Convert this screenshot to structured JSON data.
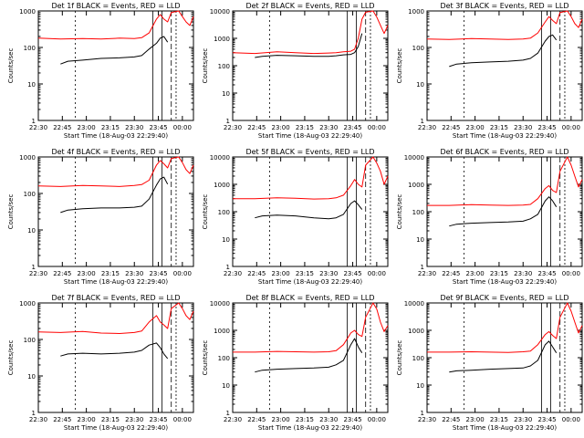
{
  "chart_data": [
    {
      "type": "line",
      "title": "Det 1f BLACK = Events, RED = LLD",
      "xlabel": "Start Time (18-Aug-03 22:29:40)",
      "ylabel": "Counts/sec",
      "x_ticks": [
        "22:30",
        "22:45",
        "23:00",
        "23:15",
        "23:30",
        "23:45",
        "00:00"
      ],
      "y_ticks": [
        "1",
        "10",
        "100",
        "1000"
      ],
      "ylim": [
        1,
        1000
      ],
      "y_scale": "log",
      "xlim_min": [
        0,
        42
      ],
      "series": [
        {
          "name": "Events",
          "color": "#000000",
          "x": [
            6,
            8,
            12,
            17,
            22,
            26,
            28,
            30,
            32,
            33,
            34,
            35
          ],
          "y": [
            35,
            42,
            45,
            50,
            52,
            55,
            60,
            90,
            130,
            180,
            200,
            140
          ]
        },
        {
          "name": "LLD",
          "color": "#ff0000",
          "x": [
            0,
            6,
            12,
            17,
            22,
            26,
            28,
            30,
            32,
            33,
            34,
            35,
            36,
            38,
            39,
            40,
            41,
            42
          ],
          "y": [
            180,
            170,
            175,
            170,
            180,
            175,
            185,
            250,
            600,
            800,
            600,
            500,
            900,
            1000,
            700,
            500,
            400,
            700
          ]
        }
      ]
    },
    {
      "type": "line",
      "title": "Det 2f BLACK = Events, RED = LLD",
      "xlabel": "Start Time (18-Aug-03 22:29:40)",
      "ylabel": "Counts/sec",
      "x_ticks": [
        "22:30",
        "22:45",
        "23:00",
        "23:15",
        "23:30",
        "23:45",
        "00:00"
      ],
      "y_ticks": [
        "1",
        "10",
        "100",
        "1000",
        "10000"
      ],
      "ylim": [
        1,
        10000
      ],
      "y_scale": "log",
      "xlim_min": [
        0,
        42
      ],
      "series": [
        {
          "name": "Events",
          "color": "#000000",
          "x": [
            6,
            8,
            12,
            17,
            22,
            26,
            28,
            30,
            32,
            33,
            34,
            35
          ],
          "y": [
            200,
            220,
            240,
            230,
            220,
            220,
            230,
            250,
            260,
            300,
            500,
            1500
          ]
        },
        {
          "name": "LLD",
          "color": "#ff0000",
          "x": [
            0,
            6,
            12,
            17,
            22,
            26,
            28,
            30,
            32,
            33,
            34,
            35,
            36,
            38,
            39,
            40,
            41,
            42
          ],
          "y": [
            300,
            280,
            320,
            300,
            280,
            290,
            300,
            320,
            340,
            400,
            1000,
            5000,
            9000,
            10000,
            6000,
            3000,
            1500,
            3000
          ]
        }
      ]
    },
    {
      "type": "line",
      "title": "Det 3f BLACK = Events, RED = LLD",
      "xlabel": "Start Time (18-Aug-03 22:29:40)",
      "ylabel": "Counts/sec",
      "x_ticks": [
        "22:30",
        "22:45",
        "23:00",
        "23:15",
        "23:30",
        "23:45",
        "00:00"
      ],
      "y_ticks": [
        "1",
        "10",
        "100",
        "1000"
      ],
      "ylim": [
        1,
        1000
      ],
      "y_scale": "log",
      "xlim_min": [
        0,
        42
      ],
      "series": [
        {
          "name": "Events",
          "color": "#000000",
          "x": [
            6,
            8,
            12,
            17,
            22,
            26,
            28,
            30,
            32,
            33,
            34,
            35
          ],
          "y": [
            30,
            35,
            38,
            40,
            42,
            45,
            50,
            70,
            150,
            200,
            220,
            160
          ]
        },
        {
          "name": "LLD",
          "color": "#ff0000",
          "x": [
            0,
            6,
            12,
            17,
            22,
            26,
            28,
            30,
            32,
            33,
            34,
            35,
            36,
            38,
            39,
            40,
            41,
            42
          ],
          "y": [
            170,
            165,
            175,
            170,
            165,
            170,
            180,
            250,
            500,
            700,
            550,
            450,
            900,
            1000,
            700,
            450,
            350,
            600
          ]
        }
      ]
    },
    {
      "type": "line",
      "title": "Det 4f BLACK = Events, RED = LLD",
      "xlabel": "Start Time (18-Aug-03 22:29:40)",
      "ylabel": "Counts/sec",
      "x_ticks": [
        "22:30",
        "22:45",
        "23:00",
        "23:15",
        "23:30",
        "23:45",
        "00:00"
      ],
      "y_ticks": [
        "1",
        "10",
        "100",
        "1000"
      ],
      "ylim": [
        1,
        1000
      ],
      "y_scale": "log",
      "xlim_min": [
        0,
        42
      ],
      "series": [
        {
          "name": "Events",
          "color": "#000000",
          "x": [
            6,
            8,
            12,
            17,
            22,
            26,
            28,
            30,
            32,
            33,
            34,
            35
          ],
          "y": [
            30,
            35,
            38,
            40,
            40,
            42,
            45,
            70,
            170,
            250,
            280,
            180
          ]
        },
        {
          "name": "LLD",
          "color": "#ff0000",
          "x": [
            0,
            6,
            12,
            17,
            22,
            26,
            28,
            30,
            32,
            33,
            34,
            35,
            36,
            38,
            39,
            40,
            41,
            42
          ],
          "y": [
            160,
            155,
            165,
            160,
            155,
            165,
            175,
            230,
            600,
            800,
            650,
            500,
            900,
            1000,
            700,
            450,
            350,
            600
          ]
        }
      ]
    },
    {
      "type": "line",
      "title": "Det 5f BLACK = Events, RED = LLD",
      "xlabel": "Start Time (18-Aug-03 22:29:40)",
      "ylabel": "Counts/sec",
      "x_ticks": [
        "22:30",
        "22:45",
        "23:00",
        "23:15",
        "23:30",
        "23:45",
        "00:00"
      ],
      "y_ticks": [
        "1",
        "10",
        "100",
        "1000",
        "10000"
      ],
      "ylim": [
        1,
        10000
      ],
      "y_scale": "log",
      "xlim_min": [
        0,
        42
      ],
      "series": [
        {
          "name": "Events",
          "color": "#000000",
          "x": [
            6,
            8,
            12,
            17,
            22,
            26,
            28,
            30,
            32,
            33,
            34,
            35
          ],
          "y": [
            60,
            70,
            75,
            70,
            60,
            55,
            60,
            80,
            200,
            250,
            180,
            120
          ]
        },
        {
          "name": "LLD",
          "color": "#ff0000",
          "x": [
            0,
            6,
            12,
            17,
            22,
            26,
            28,
            30,
            32,
            33,
            34,
            35,
            36,
            38,
            39,
            40,
            41,
            42
          ],
          "y": [
            300,
            300,
            320,
            310,
            290,
            300,
            320,
            400,
            900,
            1500,
            1000,
            800,
            5000,
            10000,
            6000,
            3000,
            1000,
            2000
          ]
        }
      ]
    },
    {
      "type": "line",
      "title": "Det 6f BLACK = Events, RED = LLD",
      "xlabel": "Start Time (18-Aug-03 22:29:40)",
      "ylabel": "Counts/sec",
      "x_ticks": [
        "22:30",
        "22:45",
        "23:00",
        "23:15",
        "23:30",
        "23:45",
        "00:00"
      ],
      "y_ticks": [
        "1",
        "10",
        "100",
        "1000",
        "10000"
      ],
      "ylim": [
        1,
        10000
      ],
      "y_scale": "log",
      "xlim_min": [
        0,
        42
      ],
      "series": [
        {
          "name": "Events",
          "color": "#000000",
          "x": [
            6,
            8,
            12,
            17,
            22,
            26,
            28,
            30,
            32,
            33,
            34,
            35
          ],
          "y": [
            30,
            35,
            38,
            40,
            42,
            45,
            55,
            80,
            250,
            350,
            250,
            150
          ]
        },
        {
          "name": "LLD",
          "color": "#ff0000",
          "x": [
            0,
            6,
            12,
            17,
            22,
            26,
            28,
            30,
            32,
            33,
            34,
            35,
            36,
            38,
            39,
            40,
            41,
            42
          ],
          "y": [
            170,
            170,
            180,
            175,
            170,
            175,
            185,
            300,
            700,
            900,
            600,
            500,
            3000,
            10000,
            5000,
            2000,
            800,
            1500
          ]
        }
      ]
    },
    {
      "type": "line",
      "title": "Det 7f BLACK = Events, RED = LLD",
      "xlabel": "Start Time (18-Aug-03 22:29:40)",
      "ylabel": "Counts/sec",
      "x_ticks": [
        "22:30",
        "22:45",
        "23:00",
        "23:15",
        "23:30",
        "23:45",
        "00:00"
      ],
      "y_ticks": [
        "1",
        "10",
        "100",
        "1000"
      ],
      "ylim": [
        1,
        1000
      ],
      "y_scale": "log",
      "xlim_min": [
        0,
        42
      ],
      "series": [
        {
          "name": "Events",
          "color": "#000000",
          "x": [
            6,
            8,
            12,
            17,
            22,
            26,
            28,
            30,
            32,
            33,
            34,
            35
          ],
          "y": [
            35,
            40,
            42,
            40,
            42,
            45,
            50,
            70,
            80,
            60,
            40,
            30
          ]
        },
        {
          "name": "LLD",
          "color": "#ff0000",
          "x": [
            0,
            6,
            12,
            17,
            22,
            26,
            28,
            30,
            32,
            33,
            34,
            35,
            36,
            38,
            39,
            40,
            41,
            42
          ],
          "y": [
            160,
            155,
            165,
            150,
            145,
            155,
            170,
            300,
            450,
            300,
            250,
            200,
            700,
            1000,
            700,
            450,
            350,
            600
          ]
        }
      ]
    },
    {
      "type": "line",
      "title": "Det 8f BLACK = Events, RED = LLD",
      "xlabel": "Start Time (18-Aug-03 22:29:40)",
      "ylabel": "Counts/sec",
      "x_ticks": [
        "22:30",
        "22:45",
        "23:00",
        "23:15",
        "23:30",
        "23:45",
        "00:00"
      ],
      "y_ticks": [
        "1",
        "10",
        "100",
        "1000",
        "10000"
      ],
      "ylim": [
        1,
        10000
      ],
      "y_scale": "log",
      "xlim_min": [
        0,
        42
      ],
      "series": [
        {
          "name": "Events",
          "color": "#000000",
          "x": [
            6,
            8,
            12,
            17,
            22,
            26,
            28,
            30,
            32,
            33,
            34,
            35
          ],
          "y": [
            30,
            35,
            38,
            40,
            42,
            45,
            55,
            80,
            300,
            500,
            250,
            150
          ]
        },
        {
          "name": "LLD",
          "color": "#ff0000",
          "x": [
            0,
            6,
            12,
            17,
            22,
            26,
            28,
            30,
            32,
            33,
            34,
            35,
            36,
            38,
            39,
            40,
            41,
            42
          ],
          "y": [
            160,
            160,
            170,
            165,
            160,
            165,
            180,
            300,
            800,
            1000,
            700,
            600,
            3000,
            10000,
            6000,
            2000,
            900,
            1500
          ]
        }
      ]
    },
    {
      "type": "line",
      "title": "Det 9f BLACK = Events, RED = LLD",
      "xlabel": "Start Time (18-Aug-03 22:29:40)",
      "ylabel": "Counts/sec",
      "x_ticks": [
        "22:30",
        "22:45",
        "23:00",
        "23:15",
        "23:30",
        "23:45",
        "00:00"
      ],
      "y_ticks": [
        "1",
        "10",
        "100",
        "1000",
        "10000"
      ],
      "ylim": [
        1,
        10000
      ],
      "y_scale": "log",
      "xlim_min": [
        0,
        42
      ],
      "series": [
        {
          "name": "Events",
          "color": "#000000",
          "x": [
            6,
            8,
            12,
            17,
            22,
            26,
            28,
            30,
            32,
            33,
            34,
            35
          ],
          "y": [
            30,
            33,
            35,
            38,
            40,
            42,
            50,
            80,
            300,
            400,
            250,
            150
          ]
        },
        {
          "name": "LLD",
          "color": "#ff0000",
          "x": [
            0,
            6,
            12,
            17,
            22,
            26,
            28,
            30,
            32,
            33,
            34,
            35,
            36,
            38,
            39,
            40,
            41,
            42
          ],
          "y": [
            160,
            160,
            165,
            160,
            155,
            165,
            175,
            300,
            700,
            900,
            650,
            500,
            3000,
            10000,
            5000,
            2000,
            800,
            1500
          ]
        }
      ]
    }
  ]
}
